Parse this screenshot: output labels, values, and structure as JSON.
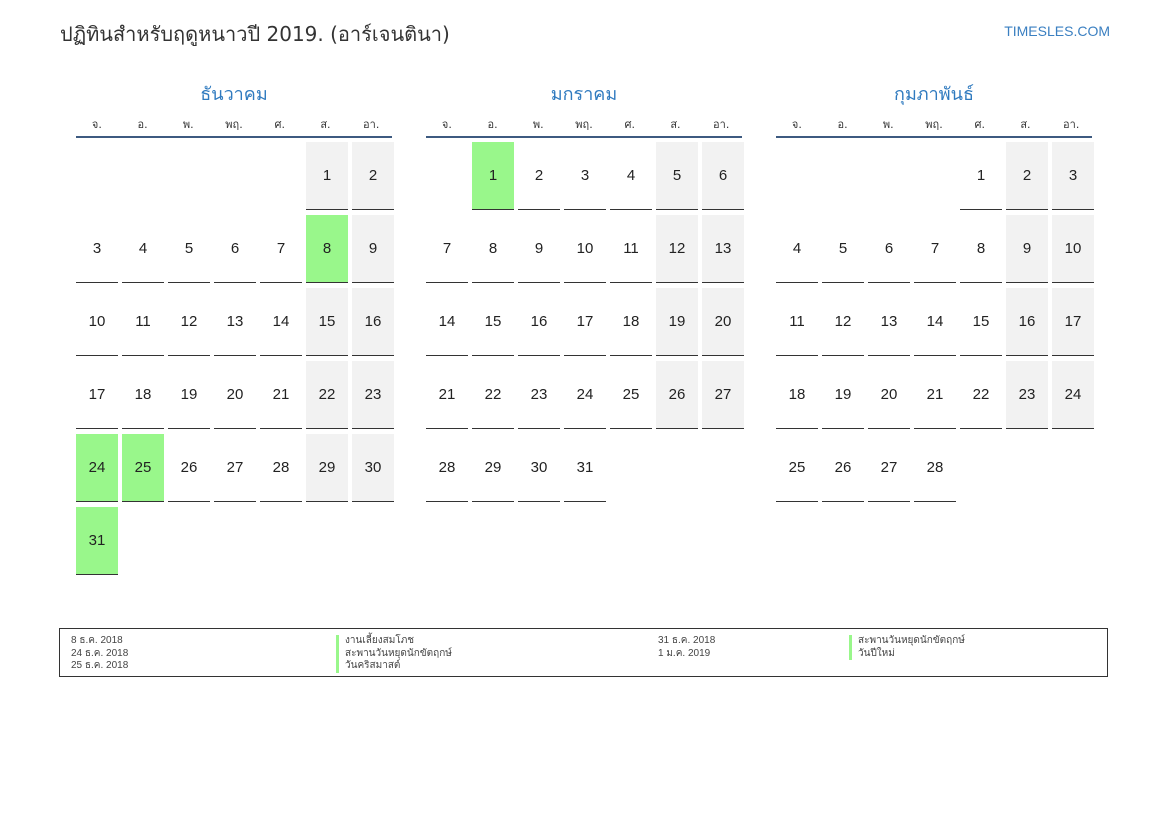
{
  "title": "ปฏิทินสำหรับฤดูหนาวปี 2019. (อาร์เจนตินา)",
  "site": "TIMESLES.COM",
  "colors": {
    "accent": "#2f7abf",
    "holiday": "#99f78b",
    "weekend": "#f2f2f2"
  },
  "weekday_labels": [
    "จ.",
    "อ.",
    "พ.",
    "พฤ.",
    "ศ.",
    "ส.",
    "อา."
  ],
  "months": [
    {
      "name": "ธันวาคม",
      "start_offset": 5,
      "days": 31,
      "holidays": [
        8,
        24,
        25,
        31
      ]
    },
    {
      "name": "มกราคม",
      "start_offset": 1,
      "days": 31,
      "holidays": [
        1
      ]
    },
    {
      "name": "กุมภาพันธ์",
      "start_offset": 4,
      "days": 28,
      "holidays": []
    }
  ],
  "legend": {
    "left": [
      {
        "date": "8 ธ.ค. 2018",
        "name": "งานเลี้ยงสมโภช"
      },
      {
        "date": "24 ธ.ค. 2018",
        "name": "สะพานวันหยุดนักขัตฤกษ์"
      },
      {
        "date": "25 ธ.ค. 2018",
        "name": "วันคริสมาสต์"
      }
    ],
    "right": [
      {
        "date": "31 ธ.ค. 2018",
        "name": "สะพานวันหยุดนักขัตฤกษ์"
      },
      {
        "date": "1 ม.ค. 2019",
        "name": "วันปีใหม่"
      }
    ]
  }
}
